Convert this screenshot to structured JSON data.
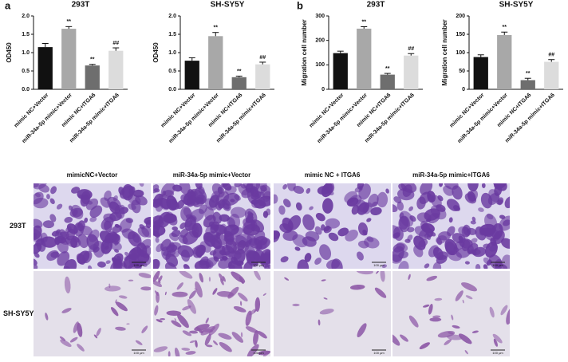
{
  "panels": {
    "a": "a",
    "b": "b"
  },
  "chart_data": [
    {
      "type": "bar",
      "title": "293T",
      "y_label": "OD450",
      "categories": [
        "mimic NC+Vector",
        "miR-34a-5p mimic+Vector",
        "mimic NC+ITGA6",
        "miR-34a-5p mimic+ITGA6"
      ],
      "values": [
        1.15,
        1.65,
        0.65,
        1.05
      ],
      "errors": [
        0.1,
        0.06,
        0.03,
        0.08
      ],
      "markers": [
        null,
        "**",
        "**",
        "##"
      ],
      "colors": [
        "#111111",
        "#a8a8a8",
        "#6e6e6e",
        "#dcdcdc"
      ],
      "ylim": [
        0,
        2
      ],
      "yticks": [
        {
          "value": 0,
          "label": "0.0"
        },
        0.5,
        {
          "value": 1,
          "label": "1.0"
        },
        1.5,
        {
          "value": 2,
          "label": "2.0"
        }
      ]
    },
    {
      "type": "bar",
      "title": "SH-SY5Y",
      "y_label": "OD450",
      "categories": [
        "mimic NC+Vector",
        "miR-34a-5p mimic+Vector",
        "mimic NC+ITGA6",
        "miR-34a-5p mimic+ITGA6"
      ],
      "values": [
        0.78,
        1.45,
        0.33,
        0.68
      ],
      "errors": [
        0.08,
        0.1,
        0.03,
        0.06
      ],
      "markers": [
        null,
        "**",
        "**",
        "##"
      ],
      "colors": [
        "#111111",
        "#a8a8a8",
        "#6e6e6e",
        "#dcdcdc"
      ],
      "ylim": [
        0,
        2
      ],
      "yticks": [
        {
          "value": 0,
          "label": "0.0"
        },
        0.5,
        {
          "value": 1,
          "label": "1.0"
        },
        1.5,
        {
          "value": 2,
          "label": "2.0"
        }
      ]
    },
    {
      "type": "bar",
      "title": "293T",
      "y_label": "Migration cell number",
      "categories": [
        "mimic NC+Vector",
        "miR-34a-5p mimic+Vector",
        "mimic NC+ITGA6",
        "miR-34a-5p mimic+ITGA6"
      ],
      "values": [
        148,
        248,
        60,
        138
      ],
      "errors": [
        8,
        8,
        5,
        8
      ],
      "markers": [
        null,
        "**",
        "**",
        "##"
      ],
      "colors": [
        "#111111",
        "#a8a8a8",
        "#6e6e6e",
        "#dcdcdc"
      ],
      "ylim": [
        0,
        300
      ],
      "yticks": [
        0,
        100,
        200,
        300
      ]
    },
    {
      "type": "bar",
      "title": "SH-SY5Y",
      "y_label": "Migration cell number",
      "categories": [
        "mimic NC+Vector",
        "miR-34a-5p mimic+Vector",
        "mimic NC+ITGA6",
        "miR-34a-5p mimic+ITGA6"
      ],
      "values": [
        88,
        148,
        25,
        75
      ],
      "errors": [
        6,
        8,
        5,
        6
      ],
      "markers": [
        null,
        "**",
        "**",
        "##"
      ],
      "colors": [
        "#111111",
        "#a8a8a8",
        "#6e6e6e",
        "#dcdcdc"
      ],
      "ylim": [
        0,
        200
      ],
      "yticks": [
        0,
        50,
        100,
        150,
        200
      ]
    }
  ],
  "images": {
    "columns": [
      "mimicNC+Vector",
      "miR-34a-5p mimic+Vector",
      "mimic NC + ITGA6",
      "miR-34a-5p mimic+ITGA6"
    ],
    "rows": [
      "293T",
      "SH-SY5Y"
    ],
    "scale_bar": "100 μm"
  }
}
